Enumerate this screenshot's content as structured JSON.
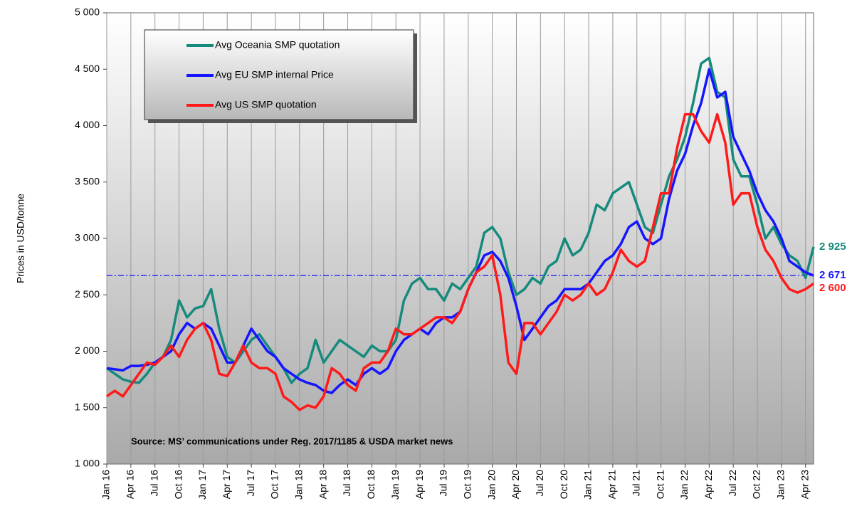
{
  "chart_data": {
    "type": "line",
    "y_label": "Prices in USD/tonne",
    "annotation": "Source: MS’ communications under Reg. 2017/1185 & USDA market news",
    "categories": [
      "Jan 16",
      null,
      null,
      "Apr 16",
      null,
      null,
      "Jul 16",
      null,
      null,
      "Oct 16",
      null,
      null,
      "Jan 17",
      null,
      null,
      "Apr 17",
      null,
      null,
      "Jul 17",
      null,
      null,
      "Oct 17",
      null,
      null,
      "Jan 18",
      null,
      null,
      "Apr 18",
      null,
      null,
      "Jul 18",
      null,
      null,
      "Oct 18",
      null,
      null,
      "Jan 19",
      null,
      null,
      "Apr 19",
      null,
      null,
      "Jul 19",
      null,
      null,
      "Oct 19",
      null,
      null,
      "Jan 20",
      null,
      null,
      "Apr 20",
      null,
      null,
      "Jul 20",
      null,
      null,
      "Oct 20",
      null,
      null,
      "Jan 21",
      null,
      null,
      "Apr 21",
      null,
      null,
      "Jul 21",
      null,
      null,
      "Oct 21",
      null,
      null,
      "Jan 22",
      null,
      null,
      "Apr 22",
      null,
      null,
      "Jul 22",
      null,
      null,
      "Oct 22",
      null,
      null,
      "Jan 23",
      null,
      null,
      "Apr 23",
      null
    ],
    "series": [
      {
        "name": "Avg Oceania SMP quotation",
        "color": "#168a7c",
        "last_label": "2 925",
        "values": [
          1850,
          1800,
          1750,
          1730,
          1720,
          1800,
          1900,
          1950,
          2100,
          2450,
          2300,
          2380,
          2400,
          2550,
          2200,
          1950,
          1900,
          2000,
          2100,
          2150,
          2050,
          1950,
          1850,
          1720,
          1800,
          1850,
          2100,
          1900,
          2000,
          2100,
          2050,
          2000,
          1950,
          2050,
          2000,
          2000,
          2100,
          2450,
          2600,
          2650,
          2550,
          2550,
          2450,
          2600,
          2550,
          2650,
          2750,
          3050,
          3100,
          3000,
          2700,
          2500,
          2550,
          2650,
          2600,
          2750,
          2800,
          3000,
          2850,
          2900,
          3050,
          3300,
          3250,
          3400,
          3450,
          3500,
          3300,
          3100,
          3050,
          3300,
          3550,
          3700,
          3900,
          4200,
          4550,
          4600,
          4300,
          4250,
          3700,
          3550,
          3550,
          3300,
          3000,
          3100,
          2950,
          2850,
          2800,
          2650,
          2925
        ]
      },
      {
        "name": "Avg EU SMP internal Price",
        "color": "#1515ff",
        "last_label": "2 671",
        "values": [
          1850,
          1840,
          1830,
          1870,
          1870,
          1880,
          1900,
          1950,
          2000,
          2150,
          2250,
          2200,
          2250,
          2200,
          2050,
          1900,
          1900,
          2050,
          2200,
          2100,
          2000,
          1950,
          1850,
          1800,
          1750,
          1720,
          1700,
          1650,
          1630,
          1700,
          1750,
          1700,
          1800,
          1850,
          1800,
          1850,
          2000,
          2100,
          2150,
          2200,
          2150,
          2250,
          2300,
          2300,
          2350,
          2550,
          2700,
          2850,
          2880,
          2800,
          2650,
          2400,
          2100,
          2200,
          2300,
          2400,
          2450,
          2550,
          2550,
          2550,
          2600,
          2700,
          2800,
          2850,
          2950,
          3100,
          3150,
          3000,
          2950,
          3000,
          3350,
          3600,
          3750,
          4000,
          4200,
          4500,
          4250,
          4300,
          3900,
          3750,
          3600,
          3400,
          3250,
          3150,
          3000,
          2800,
          2750,
          2700,
          2671
        ]
      },
      {
        "name": "Avg US SMP quotation",
        "color": "#ff1a1a",
        "last_label": "2 600",
        "values": [
          1600,
          1650,
          1600,
          1700,
          1800,
          1900,
          1880,
          1950,
          2050,
          1950,
          2100,
          2200,
          2250,
          2100,
          1800,
          1780,
          1900,
          2050,
          1900,
          1850,
          1850,
          1800,
          1600,
          1550,
          1480,
          1520,
          1500,
          1600,
          1850,
          1800,
          1700,
          1650,
          1850,
          1900,
          1900,
          2000,
          2200,
          2150,
          2150,
          2200,
          2250,
          2300,
          2300,
          2250,
          2350,
          2550,
          2700,
          2750,
          2850,
          2500,
          1900,
          1800,
          2250,
          2250,
          2150,
          2250,
          2350,
          2500,
          2450,
          2500,
          2600,
          2500,
          2550,
          2700,
          2900,
          2800,
          2750,
          2800,
          3100,
          3400,
          3400,
          3800,
          4100,
          4100,
          3950,
          3850,
          4100,
          3850,
          3300,
          3400,
          3400,
          3100,
          2900,
          2800,
          2650,
          2550,
          2520,
          2550,
          2600
        ]
      }
    ],
    "reference_line": {
      "value": 2671,
      "color": "#1515ff"
    },
    "ylim": [
      1000,
      5000
    ],
    "yticks": [
      {
        "value": 1000,
        "label": "1 000"
      },
      {
        "value": 1500,
        "label": "1 500"
      },
      {
        "value": 2000,
        "label": "2 000"
      },
      {
        "value": 2500,
        "label": "2 500"
      },
      {
        "value": 3000,
        "label": "3 000"
      },
      {
        "value": 3500,
        "label": "3 500"
      },
      {
        "value": 4000,
        "label": "4 000"
      },
      {
        "value": 4500,
        "label": "4 500"
      },
      {
        "value": 5000,
        "label": "5 000"
      }
    ]
  }
}
